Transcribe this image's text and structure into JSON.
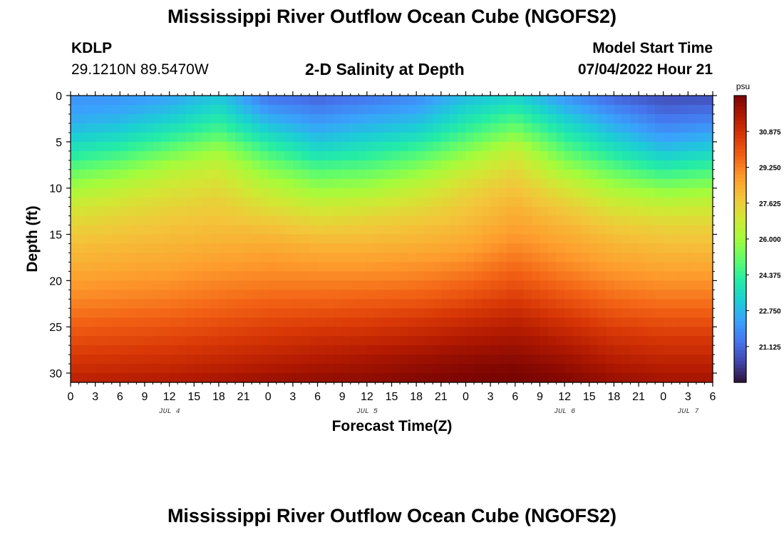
{
  "title": "Mississippi River Outflow Ocean Cube (NGOFS2)",
  "header": {
    "station": "KDLP",
    "coordinates": "29.1210N  89.5470W",
    "subtitle": "2-D Salinity at Depth",
    "model_start_label": "Model Start Time",
    "model_start_time": "07/04/2022 Hour 21"
  },
  "colors": {
    "scale": [
      "#30123b",
      "#4145ab",
      "#4675ed",
      "#39a2fc",
      "#1bcfd4",
      "#24eca6",
      "#61fc6c",
      "#a4fc3b",
      "#d1e834",
      "#f3c63a",
      "#fe9b2d",
      "#f36315",
      "#d93806",
      "#b11901",
      "#7a0402"
    ]
  },
  "chart_data": {
    "type": "heatmap",
    "title": "2-D Salinity at Depth",
    "xlabel": "Forecast Time(Z)",
    "ylabel": "Depth (ft)",
    "x_ticks": [
      "0",
      "3",
      "6",
      "9",
      "12",
      "15",
      "18",
      "21",
      "0",
      "3",
      "6",
      "9",
      "12",
      "15",
      "18",
      "21",
      "0",
      "3",
      "6",
      "9",
      "12",
      "15",
      "18",
      "21",
      "0",
      "3",
      "6"
    ],
    "x_range_hours": [
      0,
      78
    ],
    "day_labels": [
      {
        "label": "JUL 4",
        "hour": 12
      },
      {
        "label": "JUL 5",
        "hour": 36
      },
      {
        "label": "JUL 6",
        "hour": 60
      },
      {
        "label": "JUL 7",
        "hour": 75
      }
    ],
    "y_ticks": [
      0,
      5,
      10,
      15,
      20,
      25,
      30
    ],
    "ylim": [
      0,
      31
    ],
    "y_inverted": true,
    "colorbar": {
      "unit": "psu",
      "range": [
        19.5,
        32.5
      ],
      "ticks": [
        "30.875",
        "29.250",
        "27.625",
        "26.000",
        "24.375",
        "22.750",
        "21.125"
      ],
      "tick_values": [
        30.875,
        29.25,
        27.625,
        26.0,
        24.375,
        22.75,
        21.125
      ]
    },
    "time_hours": [
      0,
      6,
      12,
      18,
      24,
      30,
      36,
      42,
      48,
      54,
      60,
      66,
      72,
      78
    ],
    "depth_ft": [
      0,
      2,
      4,
      6,
      8,
      10,
      12,
      14,
      16,
      18,
      20,
      22,
      24,
      26,
      28,
      30,
      31
    ],
    "salinity_psu": [
      [
        22.0,
        22.0,
        22.3,
        23.0,
        21.3,
        21.0,
        21.3,
        21.8,
        22.8,
        23.3,
        22.0,
        21.0,
        20.6,
        20.6
      ],
      [
        22.3,
        22.5,
        23.0,
        23.8,
        22.3,
        21.8,
        22.2,
        22.5,
        23.6,
        24.4,
        23.0,
        22.0,
        21.2,
        21.4
      ],
      [
        23.0,
        23.3,
        24.0,
        24.8,
        23.4,
        22.6,
        23.0,
        23.4,
        24.5,
        25.5,
        24.0,
        22.9,
        22.0,
        22.3
      ],
      [
        23.9,
        24.4,
        25.2,
        26.0,
        24.6,
        23.6,
        24.0,
        24.6,
        25.6,
        26.7,
        25.0,
        23.9,
        23.0,
        23.4
      ],
      [
        25.0,
        25.5,
        26.3,
        26.8,
        25.6,
        24.8,
        25.0,
        25.6,
        26.6,
        27.4,
        26.0,
        25.0,
        24.2,
        24.6
      ],
      [
        26.0,
        26.5,
        27.0,
        27.3,
        26.5,
        25.8,
        26.0,
        26.6,
        27.4,
        27.9,
        27.0,
        26.1,
        25.6,
        25.8
      ],
      [
        26.9,
        27.2,
        27.5,
        27.7,
        27.2,
        26.8,
        27.0,
        27.3,
        27.8,
        28.3,
        27.7,
        27.0,
        26.7,
        26.8
      ],
      [
        27.5,
        27.7,
        27.9,
        28.0,
        27.9,
        27.6,
        27.7,
        27.9,
        28.1,
        28.6,
        28.2,
        27.7,
        27.5,
        27.5
      ],
      [
        28.0,
        28.1,
        28.2,
        28.3,
        28.4,
        28.2,
        28.2,
        28.3,
        28.5,
        29.0,
        28.6,
        28.2,
        28.0,
        28.0
      ],
      [
        28.3,
        28.4,
        28.5,
        28.7,
        28.8,
        28.7,
        28.7,
        28.8,
        29.0,
        29.5,
        29.0,
        28.6,
        28.4,
        28.4
      ],
      [
        28.7,
        28.8,
        28.9,
        29.1,
        29.2,
        29.2,
        29.2,
        29.3,
        29.6,
        30.0,
        29.5,
        29.1,
        28.9,
        28.9
      ],
      [
        29.1,
        29.2,
        29.3,
        29.5,
        29.7,
        29.7,
        29.8,
        29.9,
        30.2,
        30.6,
        30.1,
        29.6,
        29.4,
        29.4
      ],
      [
        29.6,
        29.7,
        29.8,
        30.0,
        30.2,
        30.3,
        30.4,
        30.6,
        30.9,
        31.2,
        30.7,
        30.2,
        30.0,
        30.0
      ],
      [
        30.1,
        30.2,
        30.3,
        30.5,
        30.7,
        30.9,
        31.0,
        31.2,
        31.5,
        31.7,
        31.3,
        30.8,
        30.6,
        30.6
      ],
      [
        30.6,
        30.7,
        30.8,
        31.0,
        31.2,
        31.4,
        31.6,
        31.8,
        32.0,
        32.1,
        31.8,
        31.3,
        31.1,
        31.1
      ],
      [
        31.1,
        31.2,
        31.3,
        31.5,
        31.7,
        31.9,
        32.0,
        32.2,
        32.4,
        32.5,
        32.2,
        31.8,
        31.6,
        31.6
      ],
      [
        31.4,
        31.5,
        31.6,
        31.8,
        32.0,
        32.1,
        32.2,
        32.4,
        32.5,
        32.5,
        32.4,
        32.0,
        31.8,
        31.8
      ]
    ]
  }
}
